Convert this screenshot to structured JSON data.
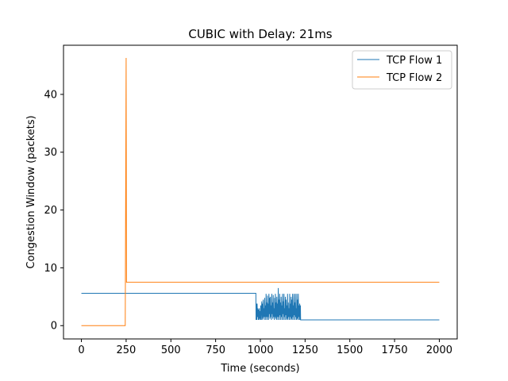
{
  "chart_data": {
    "type": "line",
    "title": "CUBIC with Delay: 21ms",
    "xlabel": "Time (seconds)",
    "ylabel": "Congestion Window (packets)",
    "xlim": [
      -100,
      2100
    ],
    "ylim": [
      -2.3,
      48.5
    ],
    "xticks": [
      0,
      250,
      500,
      750,
      1000,
      1250,
      1500,
      1750,
      2000
    ],
    "yticks": [
      0,
      10,
      20,
      30,
      40
    ],
    "grid": false,
    "legend_position": "top-right",
    "series": [
      {
        "name": "TCP Flow 1",
        "color": "#1f77b4",
        "points": [
          [
            0,
            5.6
          ],
          [
            975,
            5.6
          ],
          [
            976,
            1.0
          ],
          [
            978,
            3.8
          ],
          [
            980,
            1.0
          ],
          [
            982,
            3.8
          ],
          [
            984,
            1.5
          ],
          [
            986,
            3.0
          ],
          [
            988,
            1.0
          ],
          [
            990,
            2.8
          ],
          [
            992,
            1.0
          ],
          [
            994,
            3.0
          ],
          [
            996,
            1.2
          ],
          [
            998,
            2.5
          ],
          [
            1000,
            1.0
          ],
          [
            1002,
            3.5
          ],
          [
            1004,
            1.0
          ],
          [
            1006,
            2.7
          ],
          [
            1008,
            4.2
          ],
          [
            1010,
            1.0
          ],
          [
            1012,
            3.8
          ],
          [
            1014,
            1.2
          ],
          [
            1016,
            4.5
          ],
          [
            1018,
            1.5
          ],
          [
            1020,
            3.0
          ],
          [
            1022,
            1.0
          ],
          [
            1024,
            4.8
          ],
          [
            1026,
            1.5
          ],
          [
            1028,
            3.5
          ],
          [
            1030,
            1.0
          ],
          [
            1032,
            5.5
          ],
          [
            1034,
            1.5
          ],
          [
            1036,
            4.0
          ],
          [
            1038,
            1.0
          ],
          [
            1040,
            5.2
          ],
          [
            1042,
            1.5
          ],
          [
            1044,
            3.8
          ],
          [
            1046,
            1.0
          ],
          [
            1048,
            5.5
          ],
          [
            1050,
            2.0
          ],
          [
            1052,
            4.8
          ],
          [
            1054,
            1.2
          ],
          [
            1056,
            5.0
          ],
          [
            1058,
            1.5
          ],
          [
            1060,
            3.5
          ],
          [
            1062,
            1.0
          ],
          [
            1064,
            5.5
          ],
          [
            1066,
            2.0
          ],
          [
            1068,
            4.0
          ],
          [
            1070,
            1.2
          ],
          [
            1072,
            5.3
          ],
          [
            1074,
            1.5
          ],
          [
            1076,
            3.0
          ],
          [
            1078,
            1.0
          ],
          [
            1080,
            4.8
          ],
          [
            1082,
            1.5
          ],
          [
            1084,
            5.5
          ],
          [
            1086,
            1.2
          ],
          [
            1088,
            4.0
          ],
          [
            1090,
            1.0
          ],
          [
            1092,
            5.0
          ],
          [
            1094,
            1.5
          ],
          [
            1096,
            3.8
          ],
          [
            1098,
            1.0
          ],
          [
            1100,
            6.5
          ],
          [
            1102,
            1.5
          ],
          [
            1104,
            4.5
          ],
          [
            1106,
            1.0
          ],
          [
            1108,
            5.5
          ],
          [
            1110,
            1.8
          ],
          [
            1112,
            4.0
          ],
          [
            1114,
            1.0
          ],
          [
            1116,
            5.0
          ],
          [
            1118,
            1.5
          ],
          [
            1120,
            3.5
          ],
          [
            1122,
            1.0
          ],
          [
            1124,
            5.5
          ],
          [
            1126,
            2.0
          ],
          [
            1128,
            4.2
          ],
          [
            1130,
            1.0
          ],
          [
            1132,
            5.5
          ],
          [
            1134,
            1.5
          ],
          [
            1136,
            3.0
          ],
          [
            1138,
            1.0
          ],
          [
            1140,
            5.0
          ],
          [
            1142,
            1.8
          ],
          [
            1144,
            4.5
          ],
          [
            1146,
            1.0
          ],
          [
            1148,
            3.5
          ],
          [
            1150,
            1.2
          ],
          [
            1152,
            5.5
          ],
          [
            1154,
            1.0
          ],
          [
            1156,
            4.0
          ],
          [
            1158,
            1.5
          ],
          [
            1160,
            3.0
          ],
          [
            1162,
            1.0
          ],
          [
            1164,
            5.5
          ],
          [
            1166,
            1.5
          ],
          [
            1168,
            3.8
          ],
          [
            1170,
            1.0
          ],
          [
            1172,
            5.0
          ],
          [
            1174,
            1.2
          ],
          [
            1176,
            4.5
          ],
          [
            1178,
            1.0
          ],
          [
            1180,
            5.5
          ],
          [
            1182,
            1.5
          ],
          [
            1184,
            3.5
          ],
          [
            1186,
            1.0
          ],
          [
            1188,
            5.5
          ],
          [
            1190,
            1.8
          ],
          [
            1192,
            4.0
          ],
          [
            1194,
            1.0
          ],
          [
            1196,
            5.5
          ],
          [
            1198,
            1.5
          ],
          [
            1200,
            3.0
          ],
          [
            1202,
            1.0
          ],
          [
            1204,
            5.5
          ],
          [
            1206,
            1.2
          ],
          [
            1208,
            4.5
          ],
          [
            1210,
            1.0
          ],
          [
            1212,
            5.5
          ],
          [
            1214,
            1.5
          ],
          [
            1216,
            3.5
          ],
          [
            1218,
            1.0
          ],
          [
            1220,
            3.8
          ],
          [
            1222,
            1.0
          ],
          [
            1224,
            3.5
          ],
          [
            1225,
            1.0
          ],
          [
            2000,
            1.0
          ]
        ]
      },
      {
        "name": "TCP Flow 2",
        "color": "#ff7f0e",
        "points": [
          [
            0,
            0.0
          ],
          [
            245,
            0.0
          ],
          [
            250,
            46.3
          ],
          [
            252,
            7.5
          ],
          [
            2000,
            7.5
          ]
        ]
      }
    ]
  }
}
